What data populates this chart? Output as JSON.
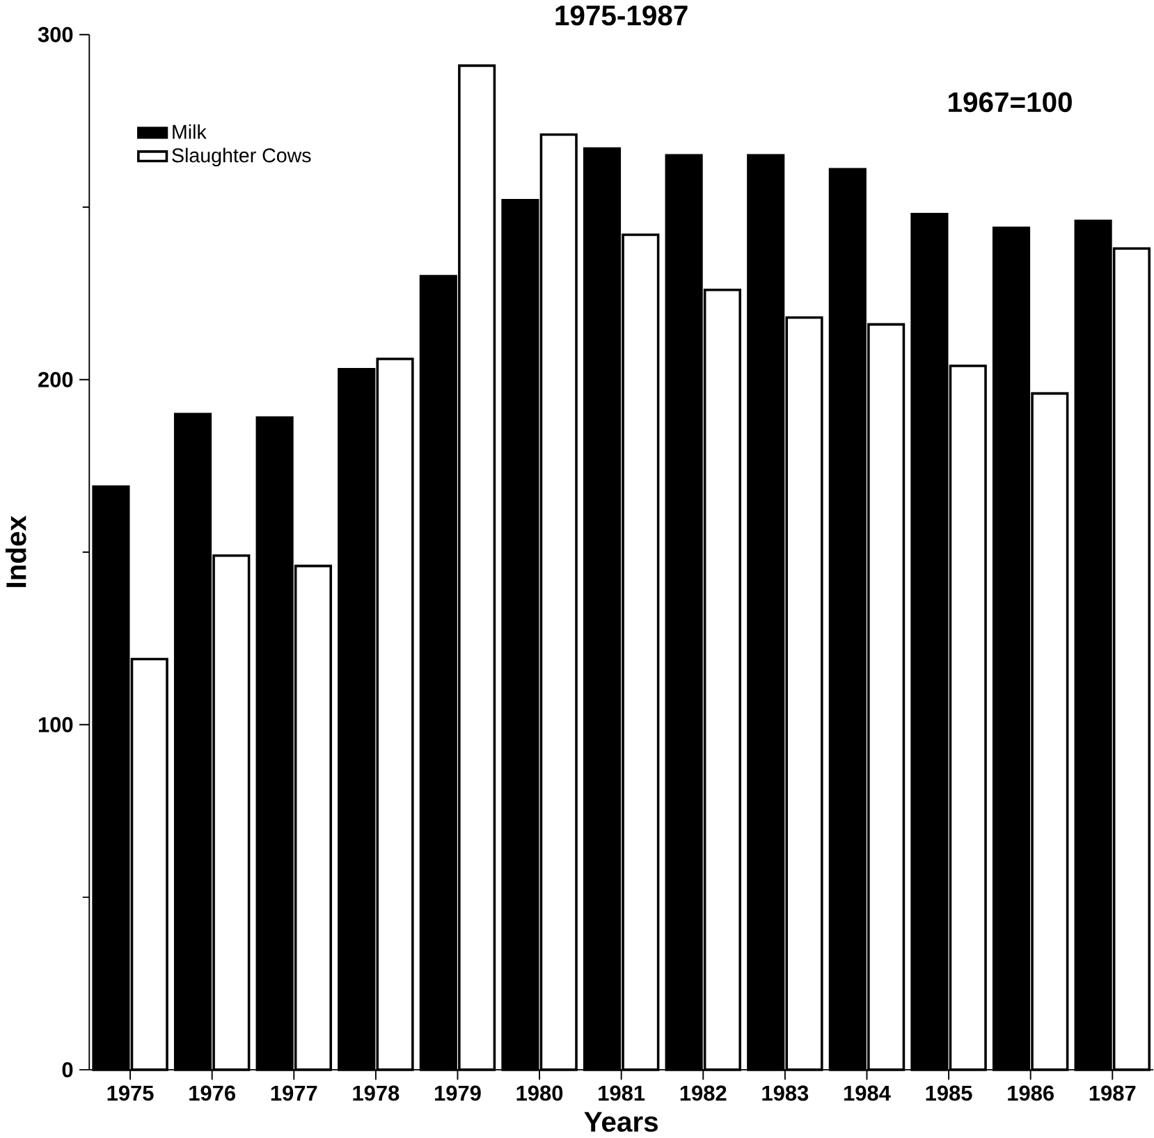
{
  "chart_data": {
    "type": "bar",
    "title": "1975-1987",
    "xlabel": "Years",
    "ylabel": "Index",
    "annotations": [
      "1967=100"
    ],
    "categories": [
      "1975",
      "1976",
      "1977",
      "1978",
      "1979",
      "1980",
      "1981",
      "1982",
      "1983",
      "1984",
      "1985",
      "1986",
      "1987"
    ],
    "series": [
      {
        "name": "Milk",
        "color": "#000000",
        "values": [
          169,
          190,
          189,
          203,
          230,
          252,
          267,
          265,
          265,
          261,
          248,
          244,
          246
        ]
      },
      {
        "name": "Slaughter Cows",
        "color": "#ffffff",
        "values": [
          119,
          149,
          146,
          206,
          291,
          271,
          242,
          226,
          218,
          216,
          204,
          196,
          238
        ]
      }
    ],
    "ylim": [
      0,
      300
    ],
    "yticks": [
      0,
      100,
      200,
      300
    ],
    "legend": "top left",
    "grid": false
  }
}
